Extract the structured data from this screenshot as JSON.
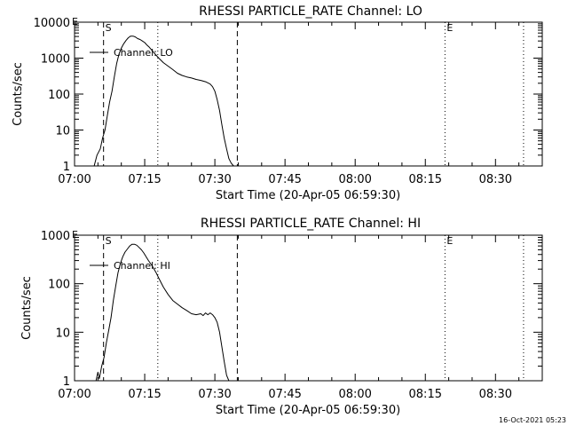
{
  "footer": {
    "timestamp": "16-Oct-2021 05:23"
  },
  "chart_data": [
    {
      "type": "line",
      "title": "RHESSI PARTICLE_RATE Channel: LO",
      "xlabel": "Start Time (20-Apr-05 06:59:30)",
      "ylabel": "Counts/sec",
      "x_unit": "minutes after 07:00 UT",
      "xlim": [
        0,
        100
      ],
      "ylim": [
        1,
        10000
      ],
      "y_scale": "log",
      "x_ticks": [
        "07:00",
        "07:15",
        "07:30",
        "07:45",
        "08:00",
        "08:15",
        "08:30"
      ],
      "y_ticks": [
        "1",
        "10",
        "100",
        "1000",
        "10000"
      ],
      "legend": {
        "label": "Channel: LO",
        "position": "top-left"
      },
      "markers": [
        {
          "label": "S",
          "x": 6.2,
          "style": "dashed"
        },
        {
          "label": "",
          "x": 17.8,
          "style": "dotted"
        },
        {
          "label": "",
          "x": 34.8,
          "style": "dashed"
        },
        {
          "label": "E",
          "x": 79.2,
          "style": "dotted"
        },
        {
          "label": "",
          "x": 96.0,
          "style": "dotted"
        }
      ],
      "edge_label": "E",
      "series": [
        {
          "name": "Channel: LO",
          "x": [
            4.2,
            4.8,
            5.5,
            6.0,
            6.5,
            7.0,
            7.5,
            8.0,
            8.5,
            9.0,
            9.5,
            10.0,
            10.5,
            11.0,
            11.5,
            12.0,
            12.5,
            13.0,
            13.5,
            14.0,
            14.5,
            15.0,
            15.5,
            16.0,
            17.0,
            18.0,
            19.0,
            20.0,
            21.0,
            22.0,
            23.0,
            24.0,
            25.0,
            26.0,
            27.0,
            28.0,
            29.0,
            29.5,
            30.0,
            30.5,
            31.0,
            31.5,
            32.0,
            32.5,
            33.0,
            33.5,
            34.0,
            34.3
          ],
          "y": [
            1,
            2,
            3,
            6,
            10,
            25,
            60,
            120,
            300,
            700,
            1300,
            1900,
            2500,
            3100,
            3700,
            4100,
            4100,
            3900,
            3500,
            3300,
            3000,
            2700,
            2300,
            2000,
            1400,
            1000,
            750,
            600,
            480,
            380,
            330,
            300,
            280,
            255,
            240,
            220,
            190,
            160,
            120,
            70,
            35,
            14,
            6,
            3,
            1.6,
            1.2,
            1,
            1
          ]
        }
      ]
    },
    {
      "type": "line",
      "title": "RHESSI PARTICLE_RATE Channel: HI",
      "xlabel": "Start Time (20-Apr-05 06:59:30)",
      "ylabel": "Counts/sec",
      "x_unit": "minutes after 07:00 UT",
      "xlim": [
        0,
        100
      ],
      "ylim": [
        1,
        1000
      ],
      "y_scale": "log",
      "x_ticks": [
        "07:00",
        "07:15",
        "07:30",
        "07:45",
        "08:00",
        "08:15",
        "08:30"
      ],
      "y_ticks": [
        "1",
        "10",
        "100",
        "1000"
      ],
      "legend": {
        "label": "Channel: HI",
        "position": "top-left"
      },
      "markers": [
        {
          "label": "S",
          "x": 6.2,
          "style": "dashed"
        },
        {
          "label": "",
          "x": 17.8,
          "style": "dotted"
        },
        {
          "label": "",
          "x": 34.8,
          "style": "dashed"
        },
        {
          "label": "E",
          "x": 79.2,
          "style": "dotted"
        },
        {
          "label": "",
          "x": 96.0,
          "style": "dotted"
        }
      ],
      "edge_label": "E",
      "series": [
        {
          "name": "Channel: HI",
          "x": [
            4.6,
            5.0,
            5.3,
            5.8,
            6.3,
            6.8,
            7.3,
            7.8,
            8.3,
            8.8,
            9.3,
            9.8,
            10.3,
            10.8,
            11.3,
            11.8,
            12.3,
            12.8,
            13.3,
            13.8,
            14.3,
            14.8,
            15.3,
            15.8,
            16.5,
            17.0,
            17.5,
            18.0,
            18.5,
            19.0,
            20.0,
            21.0,
            22.0,
            23.0,
            24.0,
            25.0,
            26.0,
            27.0,
            27.5,
            28.0,
            28.5,
            29.0,
            29.5,
            30.0,
            30.5,
            31.0,
            31.5,
            32.0,
            32.5,
            33.0
          ],
          "y": [
            1,
            1.5,
            1.1,
            2,
            3,
            6,
            11,
            20,
            45,
            90,
            170,
            260,
            360,
            450,
            520,
            600,
            650,
            650,
            620,
            560,
            500,
            430,
            360,
            300,
            240,
            200,
            165,
            130,
            105,
            85,
            60,
            45,
            38,
            32,
            28,
            24,
            23,
            24,
            22,
            25,
            23,
            25,
            23,
            20,
            16,
            10,
            5,
            2.5,
            1.3,
            1
          ]
        }
      ]
    }
  ]
}
